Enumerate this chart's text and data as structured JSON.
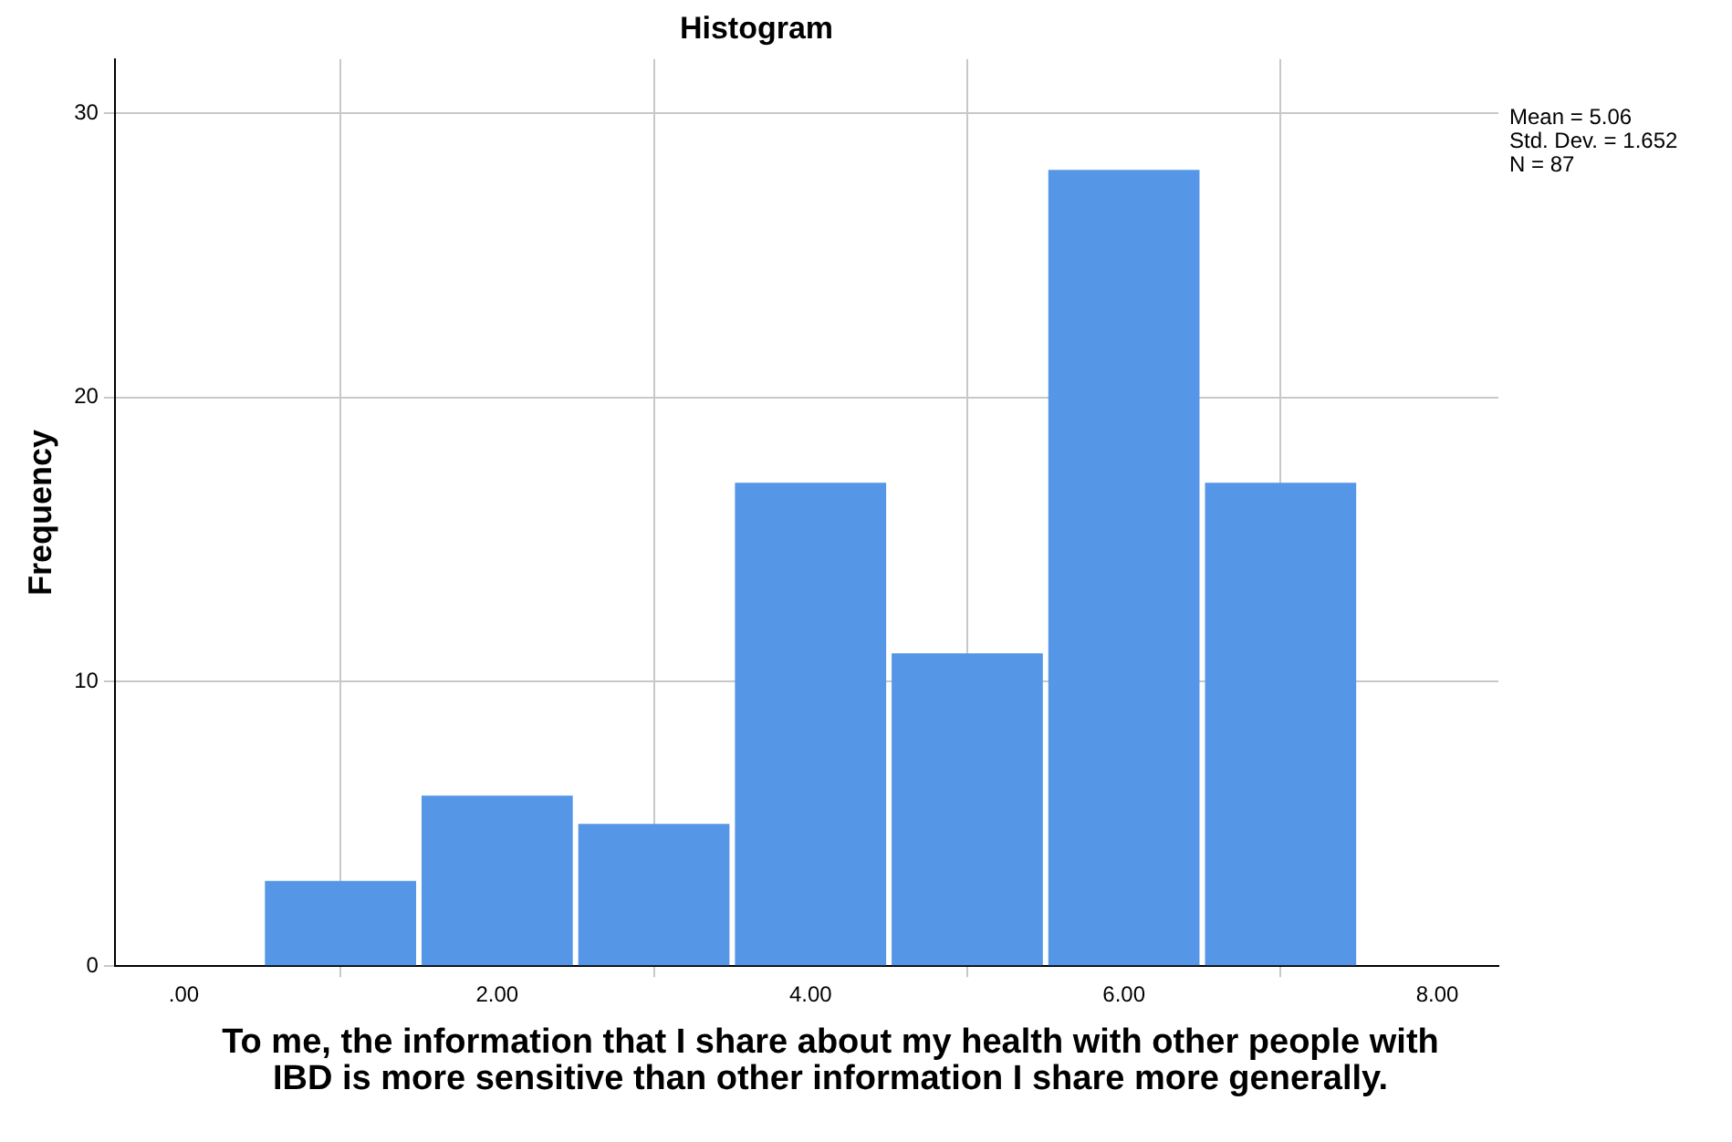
{
  "chart_data": {
    "type": "histogram",
    "title": "Histogram",
    "xlabel": "To me, the information that I share about my health with other people with IBD is more sensitive than other information I share more generally.",
    "ylabel": "Frequency",
    "bins": [
      0.5,
      1.5,
      2.5,
      3.5,
      4.5,
      5.5,
      6.5,
      7.5
    ],
    "values": [
      3,
      6,
      5,
      17,
      11,
      28,
      17
    ],
    "color": "#5597e6",
    "xlim": [
      -0.44,
      8.39
    ],
    "xticks": [
      {
        "value": 0,
        "label": ".00"
      },
      {
        "value": 2,
        "label": "2.00"
      },
      {
        "value": 4,
        "label": "4.00"
      },
      {
        "value": 6,
        "label": "6.00"
      },
      {
        "value": 8,
        "label": "8.00"
      }
    ],
    "ylim": [
      0,
      31.9
    ],
    "yticks": [
      0,
      10,
      20,
      30
    ],
    "grid": true,
    "legend": false,
    "annotations": [
      "Mean = 5.06",
      "Std. Dev. = 1.652",
      "N = 87"
    ]
  }
}
